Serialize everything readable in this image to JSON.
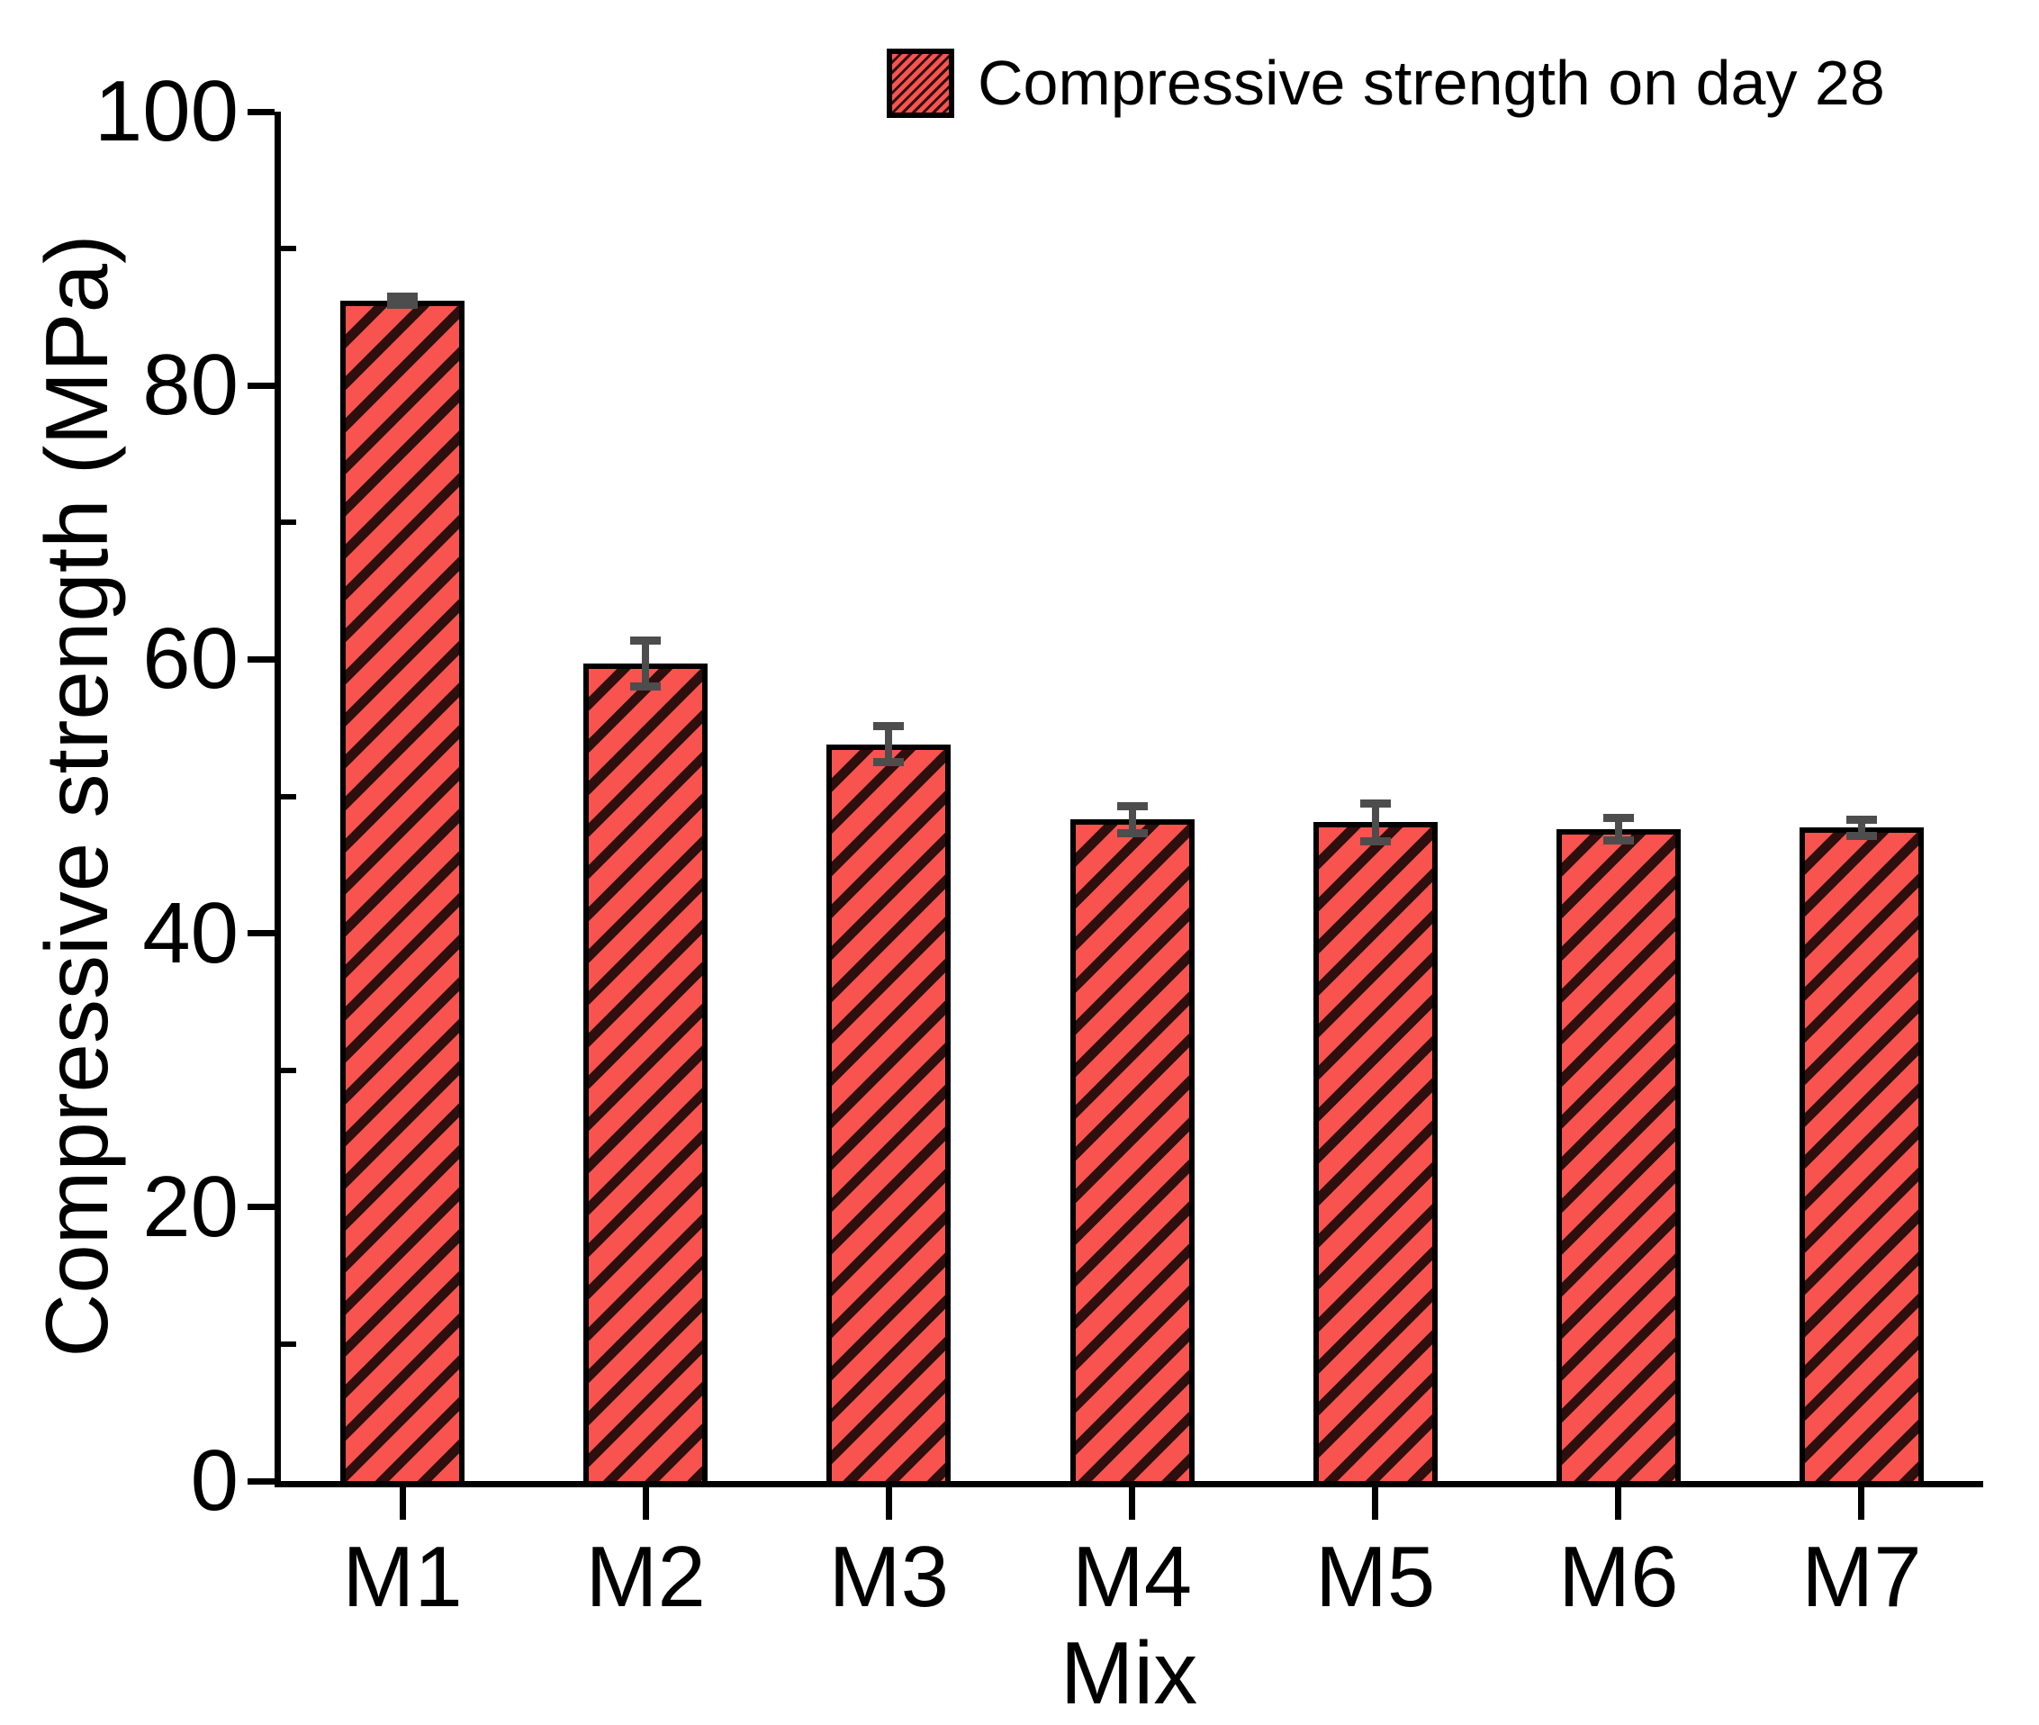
{
  "chart_data": {
    "type": "bar",
    "title": "",
    "xlabel": "Mix",
    "ylabel": "Compressive strength (MPa)",
    "categories": [
      "M1",
      "M2",
      "M3",
      "M4",
      "M5",
      "M6",
      "M7"
    ],
    "series": [
      {
        "name": "Compressive strength on day 28",
        "values": [
          86.2,
          59.7,
          53.8,
          48.3,
          48.1,
          47.6,
          47.7
        ],
        "errors": [
          0.3,
          1.7,
          1.3,
          1.0,
          1.4,
          0.8,
          0.6
        ]
      }
    ],
    "ylim": [
      0,
      100
    ],
    "y_major_ticks": [
      0,
      20,
      40,
      60,
      80,
      100
    ],
    "y_minor_ticks": [
      10,
      30,
      50,
      70,
      90
    ],
    "grid": false,
    "legend_position": "top-right",
    "bar_hatch": "diagonal-forward",
    "colors": {
      "bar_fill": "#f8534f",
      "bar_hatch": "#2d0f0d",
      "bar_edge": "#000000",
      "error_bar": "#4d4d4d",
      "axis": "#000000",
      "background": "#ffffff"
    }
  }
}
